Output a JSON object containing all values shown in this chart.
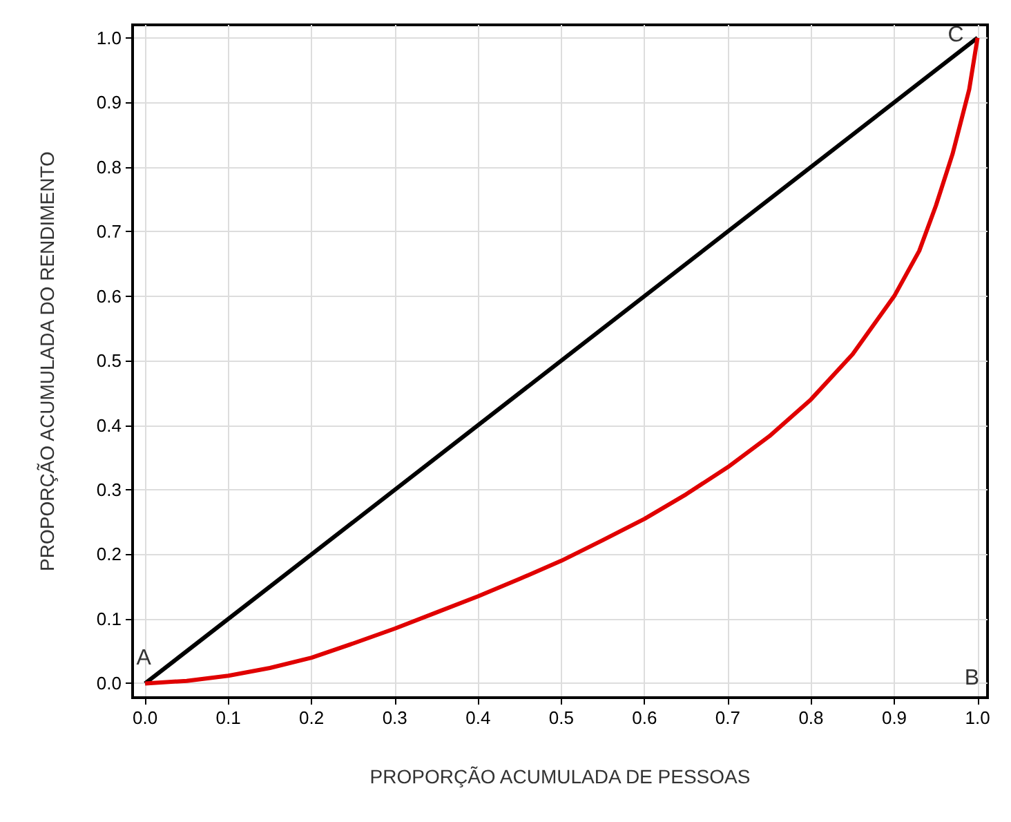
{
  "chart_data": {
    "type": "line",
    "xlabel": "PROPORÇÃO ACUMULADA DE PESSOAS",
    "ylabel": "PROPORÇÃO ACUMULADA DO RENDIMENTO",
    "xlim": [
      -0.015,
      1.012
    ],
    "ylim": [
      -0.022,
      1.02
    ],
    "xticks": [
      {
        "value": 0,
        "label": "0.0"
      },
      0.1,
      0.2,
      0.3,
      0.4,
      0.5,
      0.6,
      0.7,
      0.8,
      0.9,
      {
        "value": 1,
        "label": "1.0"
      }
    ],
    "yticks": [
      {
        "value": 0,
        "label": "0.0"
      },
      0.1,
      0.2,
      0.3,
      0.4,
      0.5,
      0.6,
      0.7,
      0.8,
      0.9,
      {
        "value": 1,
        "label": "1.0"
      }
    ],
    "grid": true,
    "marker": "none",
    "line_style": "solid",
    "series": [
      {
        "color": "#000000",
        "x": [
          0,
          1
        ],
        "values": [
          0,
          1
        ]
      },
      {
        "color": "#e00000",
        "x": [
          0,
          0.05,
          0.1,
          0.15,
          0.2,
          0.25,
          0.3,
          0.35,
          0.4,
          0.45,
          0.5,
          0.55,
          0.6,
          0.65,
          0.7,
          0.75,
          0.8,
          0.85,
          0.9,
          0.93,
          0.95,
          0.97,
          0.98,
          0.99,
          1.0
        ],
        "values": [
          0,
          0.004,
          0.012,
          0.024,
          0.04,
          0.062,
          0.085,
          0.11,
          0.135,
          0.162,
          0.19,
          0.222,
          0.255,
          0.293,
          0.335,
          0.383,
          0.44,
          0.51,
          0.6,
          0.67,
          0.74,
          0.82,
          0.87,
          0.92,
          1.0
        ]
      }
    ],
    "annotations": [
      {
        "text": "A",
        "x": 0,
        "y": 0
      },
      "B",
      {
        "text": "C",
        "x": 1,
        "y": 1
      }
    ]
  }
}
